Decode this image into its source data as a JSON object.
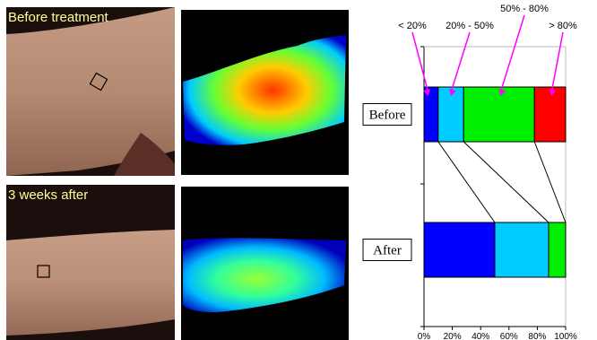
{
  "panels": {
    "before": {
      "label": "Before treatment"
    },
    "after": {
      "label": "3 weeks after"
    }
  },
  "colors": {
    "label_text": "#ffff99",
    "bin_lt20": "#0000ff",
    "bin_20_50": "#00ccff",
    "bin_50_80": "#00ee00",
    "bin_gt80": "#ff0000",
    "arrows": "#ff00ff"
  },
  "chart_data": {
    "type": "bar",
    "orientation": "horizontal",
    "stacked": true,
    "categories": [
      "Before",
      "After"
    ],
    "series": [
      {
        "name": "< 20%",
        "values": [
          10,
          50
        ],
        "color": "#0000ff"
      },
      {
        "name": "20% - 50%",
        "values": [
          18,
          38
        ],
        "color": "#00ccff"
      },
      {
        "name": "50% - 80%",
        "values": [
          50,
          12
        ],
        "color": "#00ee00"
      },
      {
        "name": "> 80%",
        "values": [
          22,
          0
        ],
        "color": "#ff0000"
      }
    ],
    "xticks": [
      "0%",
      "20%",
      "40%",
      "60%",
      "80%",
      "100%"
    ],
    "xlim": [
      0,
      100
    ],
    "title": "",
    "xlabel": "",
    "ylabel": ""
  }
}
